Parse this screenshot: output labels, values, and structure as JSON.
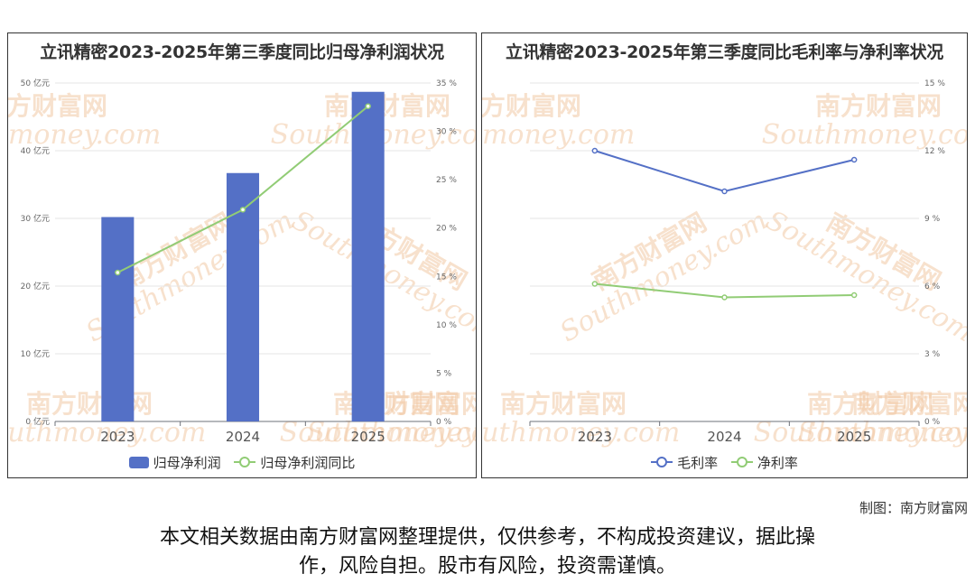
{
  "credit": "制图：南方财富网",
  "disclaimer": {
    "line1": "本文相关数据由南方财富网整理提供，仅供参考，不构成投资建议，据此操",
    "line2": "作，风险自担。股市有风险，投资需谨慎。"
  },
  "watermark": {
    "cn": "南方财富网",
    "en": "Southmoney.com",
    "color": "#f2c9a5"
  },
  "chart_data": [
    {
      "type": "bar",
      "title": "立讯精密2023-2025年第三季度同比归母净利润状况",
      "categories": [
        "2023",
        "2024",
        "2025"
      ],
      "series": [
        {
          "name": "归母净利润",
          "type": "bar",
          "axis": "left",
          "values": [
            30.2,
            36.7,
            48.7
          ],
          "color": "#5470c6"
        },
        {
          "name": "归母净利润同比",
          "type": "line",
          "axis": "right",
          "values": [
            15.4,
            21.9,
            32.6
          ],
          "color": "#91cc75"
        }
      ],
      "y_left": {
        "ticks": [
          0,
          10,
          20,
          30,
          40,
          50
        ],
        "unit": " 亿元",
        "ylim": [
          0,
          50
        ]
      },
      "y_right": {
        "ticks": [
          0,
          5,
          10,
          15,
          20,
          25,
          30,
          35
        ],
        "unit": " %",
        "ylim": [
          0,
          35
        ]
      },
      "grid": true,
      "legend": "bottom"
    },
    {
      "type": "line",
      "title": "立讯精密2023-2025年第三季度同比毛利率与净利率状况",
      "categories": [
        "2023",
        "2024",
        "2025"
      ],
      "series": [
        {
          "name": "毛利率",
          "values": [
            12.0,
            10.2,
            11.6
          ],
          "color": "#5470c6"
        },
        {
          "name": "净利率",
          "values": [
            6.1,
            5.5,
            5.6
          ],
          "color": "#91cc75"
        }
      ],
      "y_right": {
        "ticks": [
          0,
          3,
          6,
          9,
          12,
          15
        ],
        "unit": " %",
        "ylim": [
          0,
          15
        ]
      },
      "grid": true,
      "legend": "bottom"
    }
  ]
}
